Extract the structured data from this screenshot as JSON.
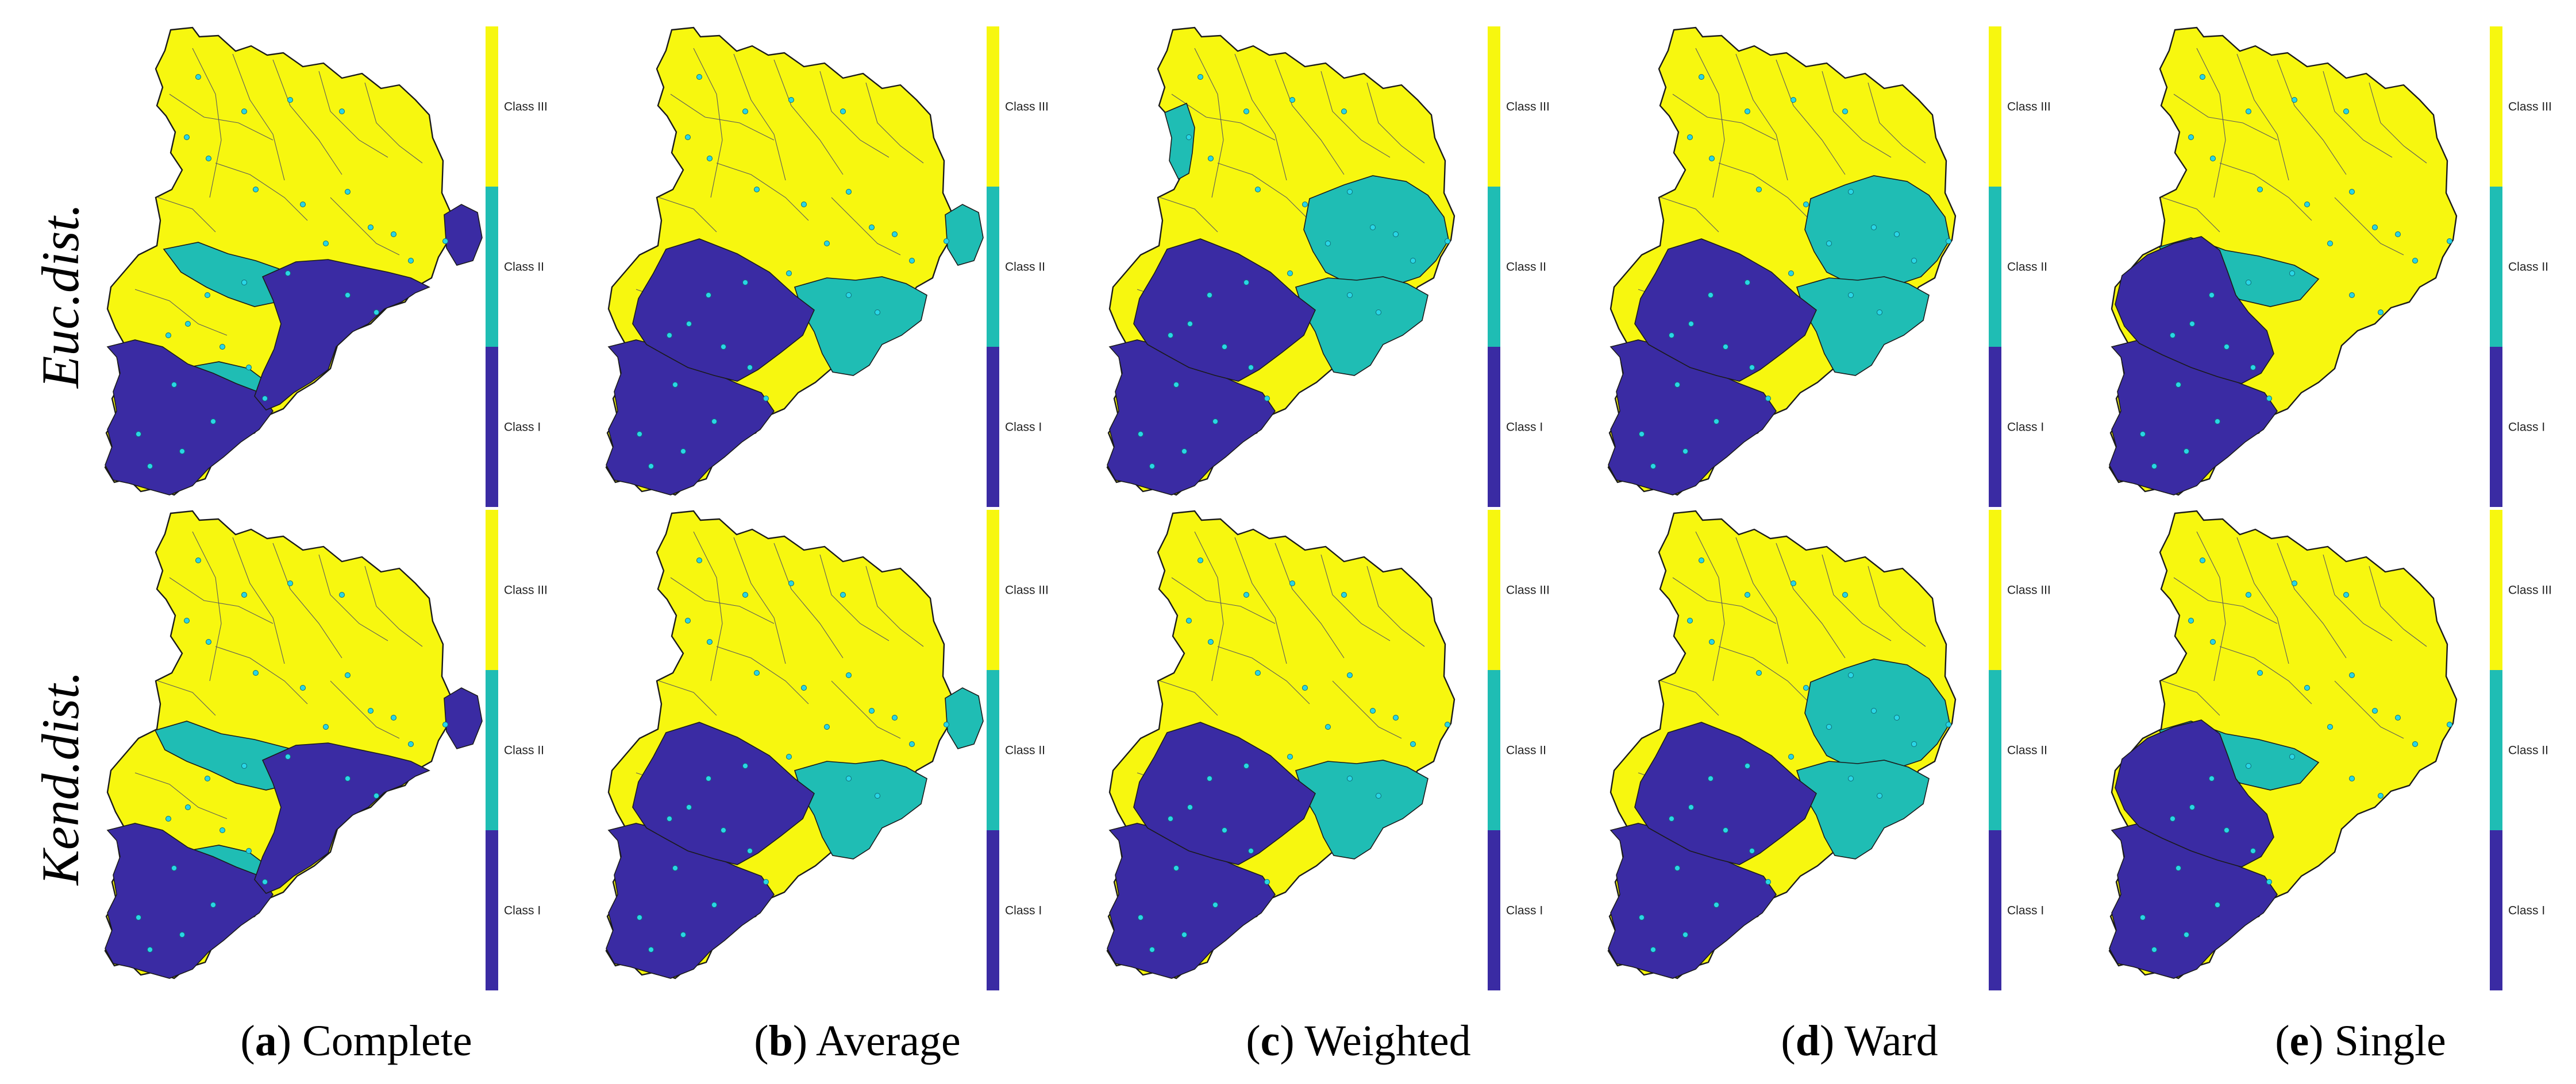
{
  "row_labels": [
    "Euc.dist.",
    "Kend.dist."
  ],
  "captions": [
    {
      "letter": "a",
      "name": "Complete"
    },
    {
      "letter": "b",
      "name": "Average"
    },
    {
      "letter": "c",
      "name": "Weighted"
    },
    {
      "letter": "d",
      "name": "Ward"
    },
    {
      "letter": "e",
      "name": "Single"
    }
  ],
  "legend": {
    "classes": [
      {
        "label": "Class III",
        "color": "#f7f70f"
      },
      {
        "label": "Class II",
        "color": "#1fbdb4"
      },
      {
        "label": "Class I",
        "color": "#3a2ba3"
      }
    ]
  },
  "colors": {
    "class_iii": "#f7f70f",
    "class_ii": "#1fbdb4",
    "class_i": "#3a2ba3",
    "station": "#29d6e6",
    "outline": "#1a1a1a"
  },
  "maps": [
    {
      "linkage": "Complete",
      "distance": "Euc.dist.",
      "class_ii_zones": [
        "central-south-band",
        "south-tongue"
      ],
      "class_i_zones": [
        "southwest",
        "southeast",
        "east-tip"
      ]
    },
    {
      "linkage": "Average",
      "distance": "Euc.dist.",
      "class_ii_zones": [
        "southeast-lobe",
        "east-tip"
      ],
      "class_i_zones": [
        "southwest",
        "central-south"
      ]
    },
    {
      "linkage": "Weighted",
      "distance": "Euc.dist.",
      "class_ii_zones": [
        "northwest-arm",
        "east-lobe",
        "southeast-lobe"
      ],
      "class_i_zones": [
        "southwest",
        "central-south"
      ]
    },
    {
      "linkage": "Ward",
      "distance": "Euc.dist.",
      "class_ii_zones": [
        "east-lobe",
        "southeast-lobe"
      ],
      "class_i_zones": [
        "southwest",
        "central-south"
      ]
    },
    {
      "linkage": "Single",
      "distance": "Euc.dist.",
      "class_ii_zones": [
        "central-band"
      ],
      "class_i_zones": [
        "southwest",
        "central-west"
      ]
    },
    {
      "linkage": "Complete",
      "distance": "Kend.dist.",
      "class_ii_zones": [
        "central-band",
        "south-tongue"
      ],
      "class_i_zones": [
        "southwest",
        "southeast",
        "east-tip"
      ]
    },
    {
      "linkage": "Average",
      "distance": "Kend.dist.",
      "class_ii_zones": [
        "southeast-lobe",
        "east-tip"
      ],
      "class_i_zones": [
        "southwest",
        "central-south"
      ]
    },
    {
      "linkage": "Weighted",
      "distance": "Kend.dist.",
      "class_ii_zones": [
        "southeast-lobe"
      ],
      "class_i_zones": [
        "southwest",
        "central-south"
      ]
    },
    {
      "linkage": "Ward",
      "distance": "Kend.dist.",
      "class_ii_zones": [
        "east-lobe",
        "southeast-lobe"
      ],
      "class_i_zones": [
        "southwest",
        "central-south"
      ]
    },
    {
      "linkage": "Single",
      "distance": "Kend.dist.",
      "class_ii_zones": [
        "central-band"
      ],
      "class_i_zones": [
        "southwest",
        "central-west"
      ]
    }
  ]
}
